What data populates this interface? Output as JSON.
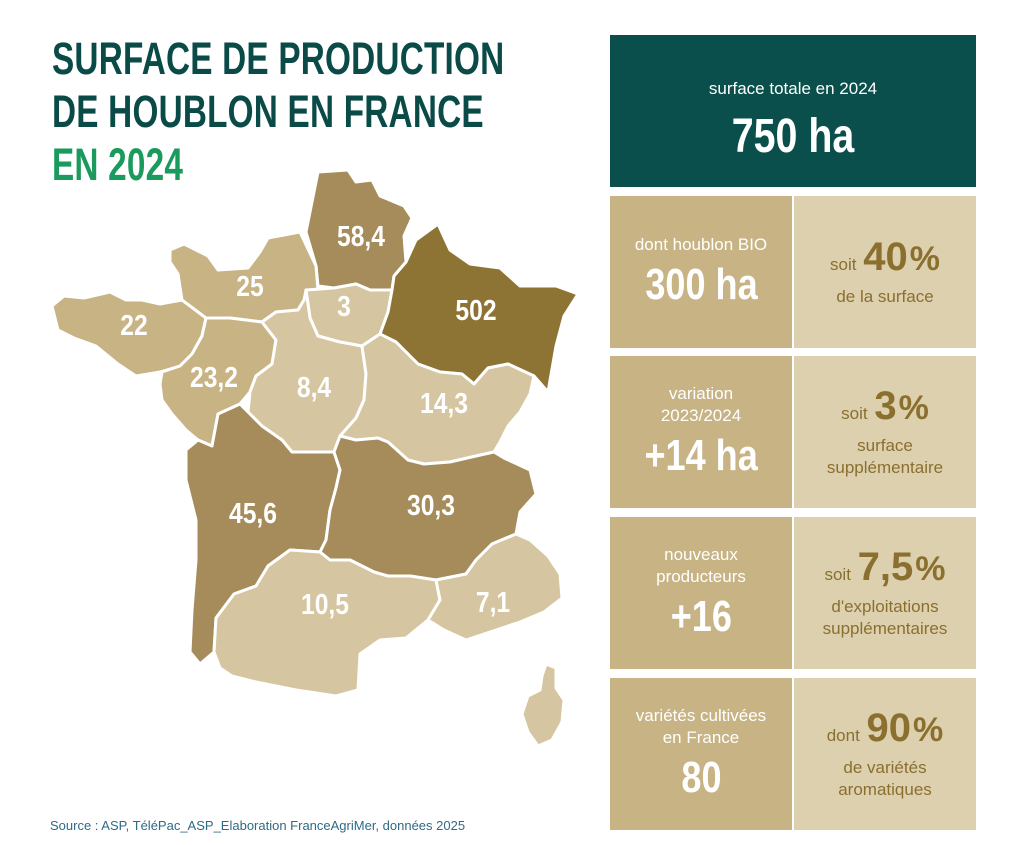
{
  "title": {
    "line1": "SURFACE DE PRODUCTION",
    "line2": "DE HOUBLON EN FRANCE",
    "line3": "EN 2024"
  },
  "colors": {
    "dark_green": "#0a4f4c",
    "accent_green": "#1a9a5c",
    "level_high": "#8e7434",
    "level_mid": "#a58c5a",
    "level_low": "#c7b384",
    "level_lowest": "#d5c5a0",
    "stat_left": "#c7b384",
    "stat_right": "#ddd0ae"
  },
  "regions": [
    {
      "id": "hauts-de-france",
      "value": "58,4",
      "level": "mid"
    },
    {
      "id": "normandie",
      "value": "25",
      "level": "low"
    },
    {
      "id": "ile-de-france",
      "value": "3",
      "level": "lowest"
    },
    {
      "id": "grand-est",
      "value": "502",
      "level": "high"
    },
    {
      "id": "bretagne",
      "value": "22",
      "level": "low"
    },
    {
      "id": "pays-de-la-loire",
      "value": "23,2",
      "level": "low"
    },
    {
      "id": "centre-val-de-loire",
      "value": "8,4",
      "level": "lowest"
    },
    {
      "id": "bourgogne-franche-comte",
      "value": "14,3",
      "level": "lowest"
    },
    {
      "id": "nouvelle-aquitaine",
      "value": "45,6",
      "level": "mid"
    },
    {
      "id": "auvergne-rhone-alpes",
      "value": "30,3",
      "level": "mid"
    },
    {
      "id": "occitanie",
      "value": "10,5",
      "level": "lowest"
    },
    {
      "id": "provence-alpes-cote-d-azur",
      "value": "7,1",
      "level": "lowest"
    },
    {
      "id": "corse",
      "value": "",
      "level": "lowest"
    }
  ],
  "total": {
    "label": "surface totale en 2024",
    "value": "750 ha"
  },
  "stats": [
    {
      "label": "dont houblon BIO",
      "value": "300 ha",
      "prefix": "soit",
      "pct": "40",
      "pct_sym": "%",
      "desc": "de la surface"
    },
    {
      "label": "variation 2023/2024",
      "value": "+14 ha",
      "prefix": "soit",
      "pct": "3",
      "pct_sym": "%",
      "desc": "surface supplémentaire"
    },
    {
      "label": "nouveaux producteurs",
      "value": "+16",
      "prefix": "soit",
      "pct": "7,5",
      "pct_sym": "%",
      "desc": "d'exploitations supplémentaires"
    },
    {
      "label": "variétés cultivées en France",
      "value": "80",
      "prefix": "dont",
      "pct": "90",
      "pct_sym": "%",
      "desc": "de variétés aromatiques"
    }
  ],
  "source": "Source : ASP, TéléPac_ASP_Elaboration FranceAgriMer, données 2025"
}
